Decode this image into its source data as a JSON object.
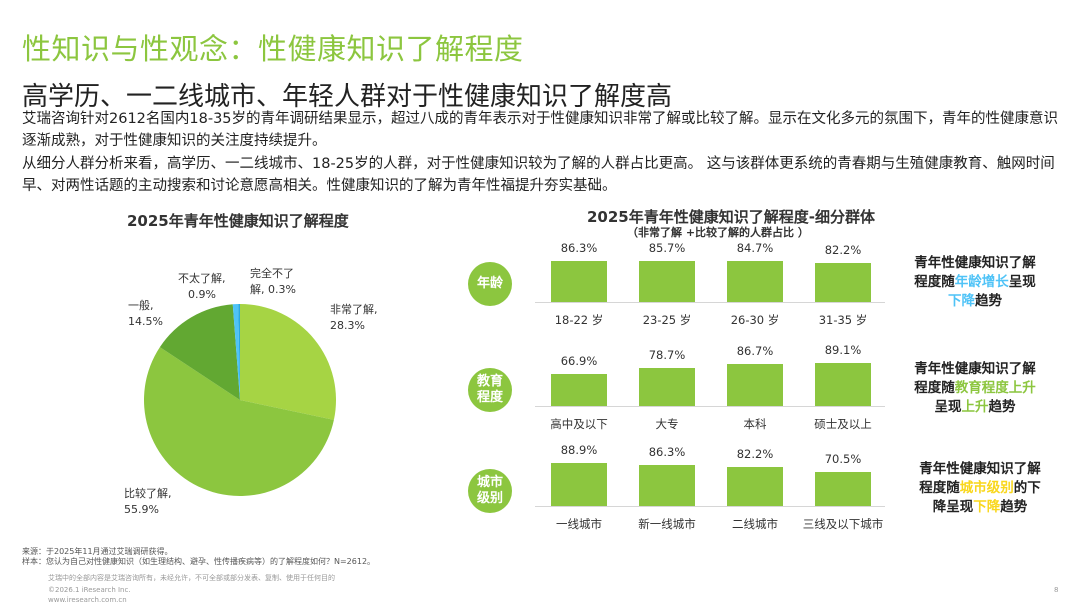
{
  "header": {
    "title": "性知识与性观念：性健康知识了解程度",
    "subtitle": "高学历、一二线城市、年轻人群对于性健康知识了解度高"
  },
  "body": {
    "para1": "艾瑞咨询针对2612名国内18-35岁的青年调研结果显示，超过八成的青年表示对于性健康知识非常了解或比较了解。显示在文化多元的氛围下，青年的性健康意识逐渐成熟，对于性健康知识的关注度持续提升。",
    "para2": "从细分人群分析来看，高学历、一二线城市、18-25岁的人群，对于性健康知识较为了解的人群占比更高。 这与该群体更系统的青春期与生殖健康教育、触网时间早、对两性话题的主动搜索和讨论意愿高相关。性健康知识的了解为青年性福提升夯实基础。"
  },
  "colors": {
    "brand_green": "#8cc63f",
    "dark_green": "#62a832",
    "highlight_blue": "#4fc3f7",
    "highlight_yellow": "#f9d71c"
  },
  "chart_data": [
    {
      "type": "pie",
      "title": "2025年青年性健康知识了解程度",
      "slices": [
        {
          "label": "非常了解,",
          "value": 28.3,
          "value_text": "28.3%",
          "color": "#a6d444"
        },
        {
          "label": "比较了解,",
          "value": 55.9,
          "value_text": "55.9%",
          "color": "#8cc63f"
        },
        {
          "label": "一般,",
          "value": 14.5,
          "value_text": "14.5%",
          "color": "#62a832"
        },
        {
          "label": "不太了解,",
          "value": 0.9,
          "value_text": "0.9%",
          "color": "#4fc3f7"
        },
        {
          "label": "完全不了",
          "value": 0.3,
          "value_text": "解, 0.3%",
          "color": "#29a9e1"
        }
      ]
    },
    {
      "type": "bar",
      "title": "2025年青年性健康知识了解程度-细分群体",
      "subtitle": "（非常了解 +比较了解的人群占比 ）",
      "ylim": [
        0,
        100
      ],
      "groups": [
        {
          "name": "年龄",
          "categories": [
            "18-22 岁",
            "23-25 岁",
            "26-30 岁",
            "31-35 岁"
          ],
          "values": [
            86.3,
            85.7,
            84.7,
            82.2
          ],
          "value_labels": [
            "86.3%",
            "85.7%",
            "84.7%",
            "82.2%"
          ]
        },
        {
          "name": "教育程度",
          "name_lines": [
            "教育",
            "程度"
          ],
          "categories": [
            "高中及以下",
            "大专",
            "本科",
            "硕士及以上"
          ],
          "values": [
            66.9,
            78.7,
            86.7,
            89.1
          ],
          "value_labels": [
            "66.9%",
            "78.7%",
            "86.7%",
            "89.1%"
          ]
        },
        {
          "name": "城市级别",
          "name_lines": [
            "城市",
            "级别"
          ],
          "categories": [
            "一线城市",
            "新一线城市",
            "二线城市",
            "三线及以下城市"
          ],
          "values": [
            88.9,
            86.3,
            82.2,
            70.5
          ],
          "value_labels": [
            "88.9%",
            "86.3%",
            "82.2%",
            "70.5%"
          ]
        }
      ]
    }
  ],
  "notes": [
    {
      "l1": "青年性健康知识了解",
      "l2a": "程度随",
      "l2h": "年龄增长",
      "l2b": "呈现",
      "l3h": "下降",
      "l3b": "趋势"
    },
    {
      "l1": "青年性健康知识了解",
      "l2a": "程度随",
      "l2h": "教育程度上升",
      "l3a": "呈现",
      "l3h": "上升",
      "l3b": "趋势"
    },
    {
      "l1": "青年性健康知识了解",
      "l2a": "程度随",
      "l2h": "城市级别",
      "l2b": "的下",
      "l3a": "降呈现",
      "l3h": "下降",
      "l3b": "趋势"
    }
  ],
  "footer": {
    "source": "来源：于2025年11月通过艾瑞调研获得。",
    "sample": "样本：您认为自己对性健康知识（如生理结构、避孕、性传播疾病等）的了解程度如何？N=2612。",
    "disclaimer": "艾瑞中的全部内容是艾瑞咨询所有，未经允许，不可全部或部分发表、复制、使用于任何目的",
    "copyright": "©2026.1 iResearch Inc.",
    "website": "www.iresearch.com.cn",
    "page_number": "8"
  }
}
